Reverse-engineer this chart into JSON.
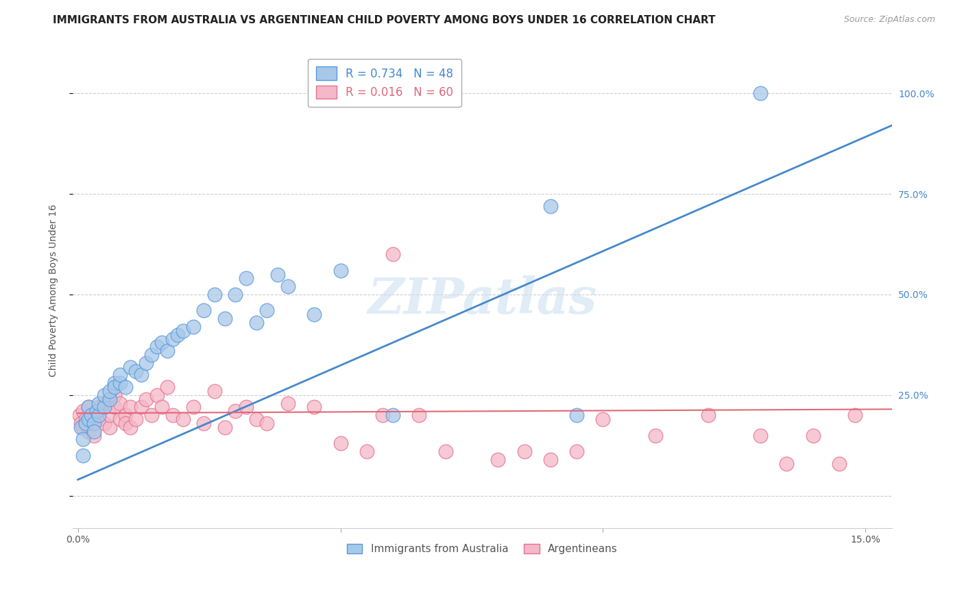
{
  "title": "IMMIGRANTS FROM AUSTRALIA VS ARGENTINEAN CHILD POVERTY AMONG BOYS UNDER 16 CORRELATION CHART",
  "source": "Source: ZipAtlas.com",
  "ylabel": "Child Poverty Among Boys Under 16",
  "xlim": [
    -0.001,
    0.155
  ],
  "ylim": [
    -0.08,
    1.1
  ],
  "blue_R": 0.734,
  "blue_N": 48,
  "pink_R": 0.016,
  "pink_N": 60,
  "blue_color": "#a8c8e8",
  "pink_color": "#f4b8c8",
  "blue_line_color": "#4488cc",
  "pink_line_color": "#e8687888",
  "legend_label_blue": "Immigrants from Australia",
  "legend_label_pink": "Argentineans",
  "watermark": "ZIPatlas",
  "blue_line_x0": 0.0,
  "blue_line_y0": 0.04,
  "blue_line_x1": 0.155,
  "blue_line_y1": 0.92,
  "pink_line_x0": 0.0,
  "pink_line_y0": 0.205,
  "pink_line_x1": 0.155,
  "pink_line_y1": 0.215,
  "grid_color": "#cccccc",
  "bg_color": "#ffffff",
  "title_fontsize": 11,
  "axis_label_fontsize": 10,
  "tick_fontsize": 10,
  "source_fontsize": 9,
  "blue_scatter_x": [
    0.0005,
    0.001,
    0.001,
    0.0015,
    0.002,
    0.002,
    0.0025,
    0.003,
    0.003,
    0.0035,
    0.004,
    0.004,
    0.005,
    0.005,
    0.006,
    0.006,
    0.007,
    0.007,
    0.008,
    0.008,
    0.009,
    0.01,
    0.011,
    0.012,
    0.013,
    0.014,
    0.015,
    0.016,
    0.017,
    0.018,
    0.019,
    0.02,
    0.022,
    0.024,
    0.026,
    0.028,
    0.03,
    0.032,
    0.034,
    0.036,
    0.038,
    0.04,
    0.045,
    0.05,
    0.06,
    0.09,
    0.095,
    0.13
  ],
  "blue_scatter_y": [
    0.17,
    0.14,
    0.1,
    0.18,
    0.19,
    0.22,
    0.2,
    0.18,
    0.16,
    0.21,
    0.2,
    0.23,
    0.22,
    0.25,
    0.24,
    0.26,
    0.28,
    0.27,
    0.28,
    0.3,
    0.27,
    0.32,
    0.31,
    0.3,
    0.33,
    0.35,
    0.37,
    0.38,
    0.36,
    0.39,
    0.4,
    0.41,
    0.42,
    0.46,
    0.5,
    0.44,
    0.5,
    0.54,
    0.43,
    0.46,
    0.55,
    0.52,
    0.45,
    0.56,
    0.2,
    0.72,
    0.2,
    1.0
  ],
  "pink_scatter_x": [
    0.0003,
    0.0005,
    0.001,
    0.001,
    0.0015,
    0.002,
    0.002,
    0.003,
    0.003,
    0.004,
    0.004,
    0.005,
    0.005,
    0.006,
    0.006,
    0.007,
    0.007,
    0.008,
    0.008,
    0.009,
    0.009,
    0.01,
    0.01,
    0.011,
    0.012,
    0.013,
    0.014,
    0.015,
    0.016,
    0.017,
    0.018,
    0.02,
    0.022,
    0.024,
    0.026,
    0.028,
    0.03,
    0.032,
    0.034,
    0.036,
    0.04,
    0.045,
    0.05,
    0.055,
    0.058,
    0.06,
    0.065,
    0.07,
    0.08,
    0.085,
    0.09,
    0.095,
    0.1,
    0.11,
    0.12,
    0.13,
    0.135,
    0.14,
    0.145,
    0.148
  ],
  "pink_scatter_y": [
    0.2,
    0.18,
    0.17,
    0.21,
    0.19,
    0.22,
    0.16,
    0.2,
    0.15,
    0.19,
    0.22,
    0.18,
    0.23,
    0.17,
    0.2,
    0.22,
    0.25,
    0.19,
    0.23,
    0.2,
    0.18,
    0.22,
    0.17,
    0.19,
    0.22,
    0.24,
    0.2,
    0.25,
    0.22,
    0.27,
    0.2,
    0.19,
    0.22,
    0.18,
    0.26,
    0.17,
    0.21,
    0.22,
    0.19,
    0.18,
    0.23,
    0.22,
    0.13,
    0.11,
    0.2,
    0.6,
    0.2,
    0.11,
    0.09,
    0.11,
    0.09,
    0.11,
    0.19,
    0.15,
    0.2,
    0.15,
    0.08,
    0.15,
    0.08,
    0.2
  ]
}
